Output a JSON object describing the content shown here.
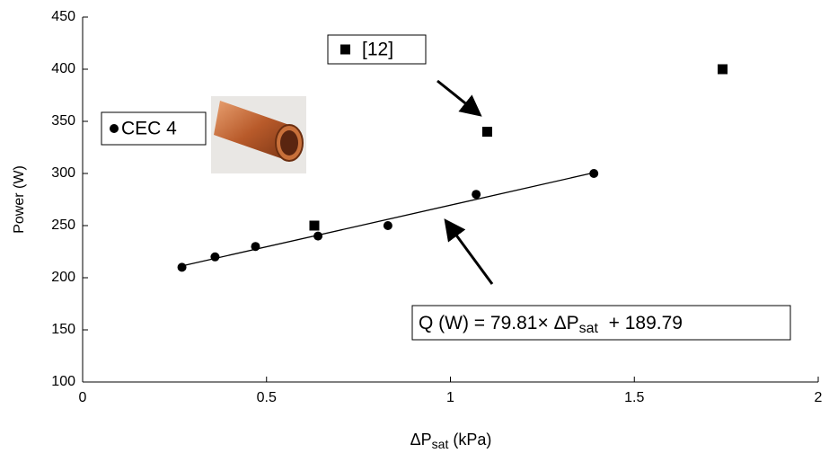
{
  "chart_data": {
    "type": "scatter",
    "x_label": {
      "main": "ΔP",
      "sub": "sat",
      "unit": " (kPa)"
    },
    "y_label": "Power (W)",
    "xlim": [
      0,
      2
    ],
    "xticks": [
      0,
      0.5,
      1,
      1.5,
      2
    ],
    "ylim": [
      100,
      450
    ],
    "yticks": [
      100,
      150,
      200,
      250,
      300,
      350,
      400,
      450
    ],
    "series": [
      {
        "name": "CEC 4",
        "marker": "circle",
        "color": "#000000",
        "x": [
          0.27,
          0.36,
          0.47,
          0.64,
          0.83,
          1.07,
          1.39
        ],
        "values": [
          210,
          220,
          230,
          240,
          250,
          280,
          300
        ]
      },
      {
        "name": "[12]",
        "marker": "square",
        "color": "#000000",
        "x": [
          0.63,
          1.1,
          1.74
        ],
        "values": [
          250,
          340,
          400
        ]
      }
    ],
    "trendline": {
      "prefix": "Q (W) = ",
      "slope": 79.81,
      "times": "× ΔP",
      "sub": "sat",
      "plus": "  + ",
      "intercept": 189.79
    }
  }
}
